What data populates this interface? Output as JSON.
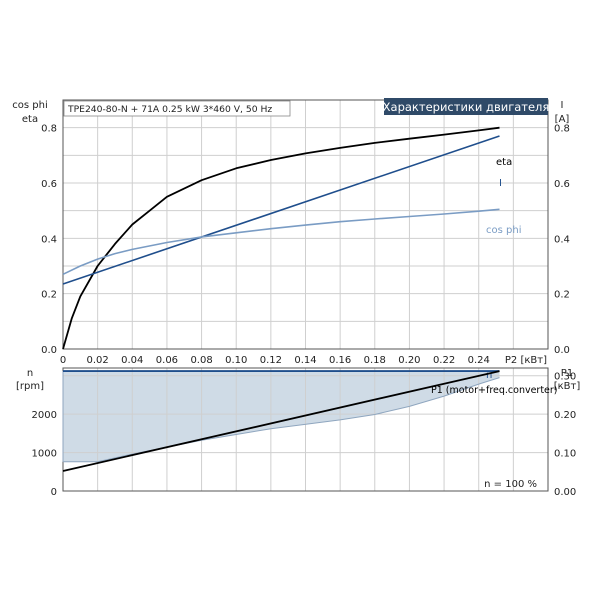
{
  "colors": {
    "eta": "#000000",
    "I": "#1f4e8c",
    "cosphi": "#7a9cc4",
    "n": "#1f4e8c",
    "n_fill": "#cfdbe6",
    "P1": "#000000",
    "grid": "#cfcfcf",
    "title_bg": "#2f4a68",
    "title_fg": "#ffffff",
    "text": "#222222"
  },
  "chart_data": [
    {
      "type": "line",
      "subtitle": "TPE240-80-N + 71A   0.25 kW   3*460 V, 50 Hz",
      "title": "Характеристики двигателя",
      "ylabel_left": [
        "cos phi",
        "eta"
      ],
      "ylabel_right": [
        "I",
        "[A]"
      ],
      "xlabel": "P2 [кВт]",
      "xlim": [
        0,
        0.28
      ],
      "ylim": [
        0,
        0.9
      ],
      "yticks": [
        0,
        0.2,
        0.4,
        0.6,
        0.8
      ],
      "yticklabels": [
        "0.0",
        "0.2",
        "0.4",
        "0.6",
        "0.8"
      ],
      "yticks_right": [
        0,
        0.2,
        0.4,
        0.6,
        0.8
      ],
      "yticklabels_right": [
        "0.0",
        "0.2",
        "0.4",
        "0.6",
        "0.8"
      ],
      "xticks": [
        0,
        0.02,
        0.04,
        0.06,
        0.08,
        0.1,
        0.12,
        0.14,
        0.16,
        0.18,
        0.2,
        0.22,
        0.24
      ],
      "xticklabels": [
        "0",
        "0.02",
        "0.04",
        "0.06",
        "0.08",
        "0.10",
        "0.12",
        "0.14",
        "0.16",
        "0.18",
        "0.20",
        "0.22",
        "0.24"
      ],
      "grid": true,
      "series": [
        {
          "name": "eta",
          "x": [
            0,
            0.005,
            0.01,
            0.02,
            0.03,
            0.04,
            0.05,
            0.06,
            0.08,
            0.1,
            0.12,
            0.14,
            0.16,
            0.18,
            0.2,
            0.22,
            0.24,
            0.252
          ],
          "y": [
            0,
            0.11,
            0.19,
            0.3,
            0.38,
            0.45,
            0.5,
            0.55,
            0.61,
            0.653,
            0.683,
            0.707,
            0.727,
            0.745,
            0.76,
            0.775,
            0.79,
            0.8
          ]
        },
        {
          "name": "I",
          "x": [
            0,
            0.252
          ],
          "y": [
            0.235,
            0.77
          ]
        },
        {
          "name": "cos phi",
          "x": [
            0,
            0.01,
            0.02,
            0.03,
            0.04,
            0.06,
            0.08,
            0.1,
            0.12,
            0.14,
            0.16,
            0.18,
            0.2,
            0.22,
            0.24,
            0.252
          ],
          "y": [
            0.27,
            0.3,
            0.325,
            0.345,
            0.36,
            0.385,
            0.405,
            0.42,
            0.435,
            0.448,
            0.46,
            0.47,
            0.479,
            0.488,
            0.498,
            0.505
          ]
        }
      ]
    },
    {
      "type": "area",
      "ylabel_left": [
        "n",
        "[rpm]"
      ],
      "ylabel_right": [
        "P1",
        "[кВт]"
      ],
      "xlim": [
        0,
        0.28
      ],
      "ylim": [
        0,
        3200
      ],
      "yticks": [
        0,
        1000,
        2000
      ],
      "yticklabels": [
        "0",
        "1000",
        "2000"
      ],
      "ylim_right": [
        0,
        0.32
      ],
      "yticks_right": [
        0,
        0.1,
        0.2,
        0.3
      ],
      "yticklabels_right": [
        "0.00",
        "0.10",
        "0.20",
        "0.30"
      ],
      "grid": true,
      "annotation": "n = 100 %",
      "series": [
        {
          "name": "n",
          "x": [
            0,
            0.252
          ],
          "y": [
            3120,
            3120
          ]
        },
        {
          "name": "P1 (motor+freq.converter)",
          "x": [
            0,
            0.252
          ],
          "y_right": [
            0.052,
            0.312
          ]
        },
        {
          "name": "n range lower",
          "x": [
            0,
            0.02,
            0.04,
            0.08,
            0.12,
            0.16,
            0.18,
            0.2,
            0.22,
            0.24,
            0.252
          ],
          "y": [
            760,
            760,
            960,
            1320,
            1620,
            1850,
            1990,
            2200,
            2470,
            2780,
            2950
          ]
        }
      ]
    }
  ]
}
